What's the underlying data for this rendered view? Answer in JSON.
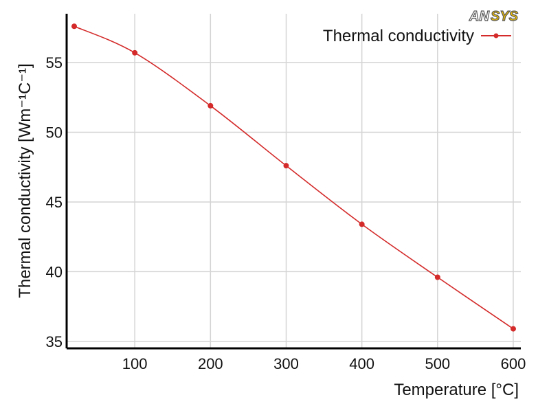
{
  "logo": {
    "text_a": "AN",
    "text_b": "SYS",
    "colors": {
      "a": "#ffffff",
      "b": "#f2c200",
      "outline": "#555555"
    }
  },
  "chart_data": {
    "type": "line",
    "xlabel": "Temperature [°C]",
    "ylabel": "Thermal conductivity [Wm⁻¹C⁻¹]",
    "xlim": [
      10,
      610
    ],
    "ylim": [
      34.5,
      58.5
    ],
    "xticks": [
      100,
      200,
      300,
      400,
      500,
      600
    ],
    "yticks": [
      35,
      40,
      45,
      50,
      55
    ],
    "grid": true,
    "legend": "top-right",
    "series": [
      {
        "name": "Thermal conductivity",
        "color": "#d42a2a",
        "x": [
          20,
          100,
          200,
          300,
          400,
          500,
          600
        ],
        "y": [
          57.6,
          55.7,
          51.9,
          47.6,
          43.4,
          39.6,
          35.9
        ]
      }
    ]
  }
}
